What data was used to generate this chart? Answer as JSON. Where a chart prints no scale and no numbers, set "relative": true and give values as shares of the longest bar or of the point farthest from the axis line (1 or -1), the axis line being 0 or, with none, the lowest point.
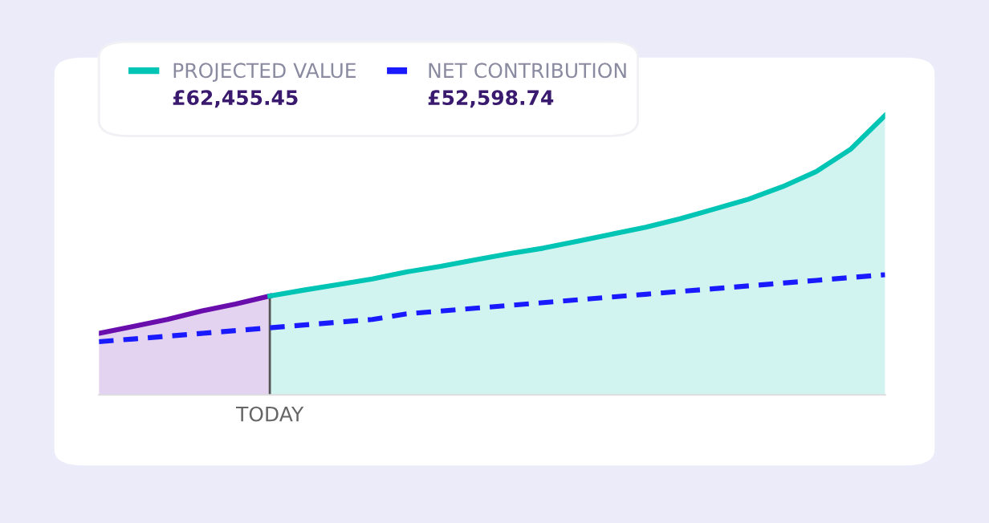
{
  "chart_data": {
    "type": "line",
    "relative": true,
    "legend": "top left",
    "categories": [
      null,
      null,
      null,
      null,
      null,
      null,
      null,
      null,
      null,
      null,
      null,
      null,
      null,
      null,
      null,
      null,
      null,
      null,
      null,
      null,
      null,
      null,
      null,
      null
    ],
    "series": [
      {
        "type": "area",
        "color": "#6a0dad",
        "values": [
          0.22,
          0.245,
          0.27,
          0.3,
          0.325,
          0.354,
          null,
          null,
          null,
          null,
          null,
          null,
          null,
          null,
          null,
          null,
          null,
          null,
          null,
          null,
          null,
          null,
          null,
          null
        ]
      },
      {
        "type": "area",
        "name": "PROJECTED VALUE",
        "color": "#00c4b4",
        "values": [
          null,
          null,
          null,
          null,
          null,
          0.354,
          0.375,
          0.395,
          0.415,
          0.44,
          0.46,
          0.483,
          0.505,
          0.525,
          0.55,
          0.575,
          0.6,
          0.63,
          0.665,
          0.7,
          0.745,
          0.8,
          0.88,
          1
        ]
      },
      {
        "name": "NET CONTRIBUTION",
        "color": "#1a1aff",
        "line_style": "dashed",
        "values": [
          0.19,
          0.2,
          0.21,
          0.22,
          0.23,
          0.24,
          0.25,
          0.26,
          0.27,
          0.29,
          0.3,
          0.31,
          0.32,
          0.33,
          0.34,
          0.35,
          0.36,
          0.37,
          0.38,
          0.39,
          0.4,
          0.41,
          0.42,
          0.43
        ]
      }
    ],
    "annotations": [
      "£62,455.45",
      "£52,598.74",
      "TODAY"
    ]
  }
}
